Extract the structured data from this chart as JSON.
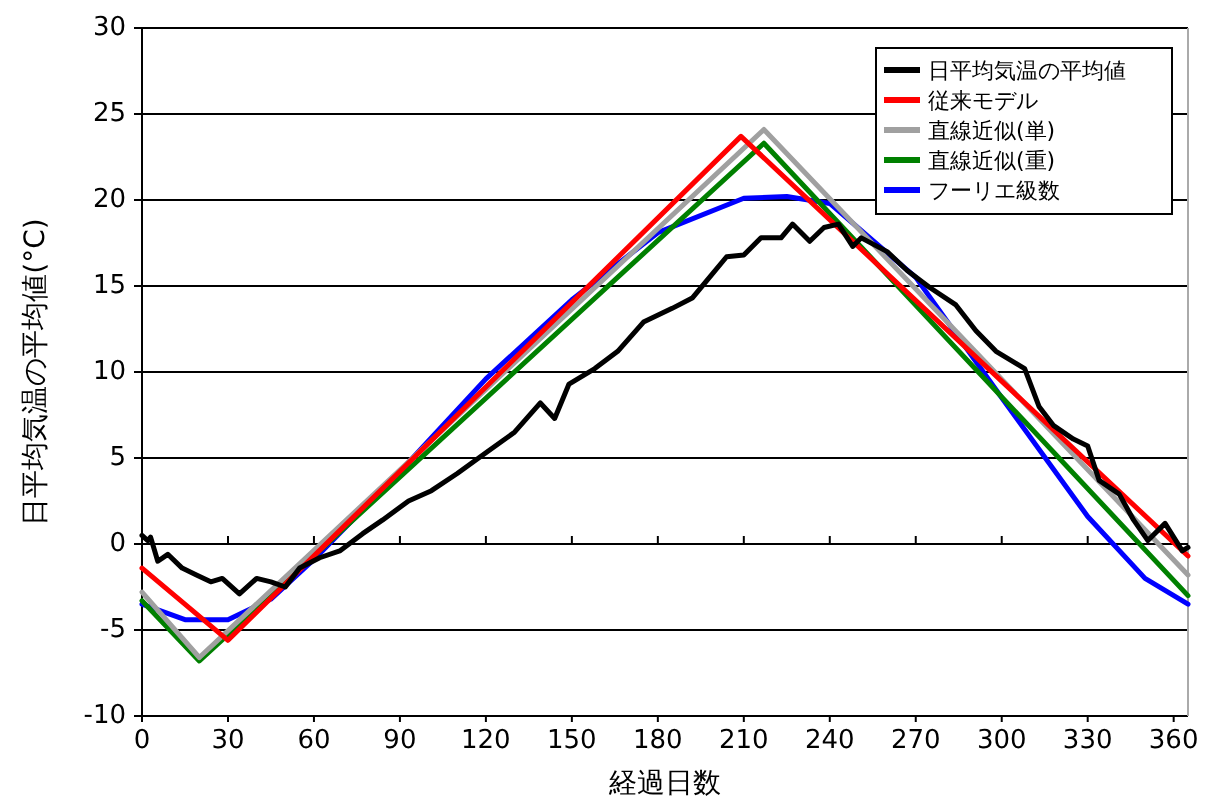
{
  "chart_data": {
    "type": "line",
    "xlabel": "経過日数",
    "ylabel": "日平均気温の平均値(°C)",
    "xlim": [
      0,
      365
    ],
    "ylim": [
      -10,
      30
    ],
    "xticks": [
      0,
      30,
      60,
      90,
      120,
      150,
      180,
      210,
      240,
      270,
      300,
      330,
      360
    ],
    "yticks": [
      -10,
      -5,
      0,
      5,
      10,
      15,
      20,
      25,
      30
    ],
    "grid": "y",
    "legend": "top right",
    "series": [
      {
        "name": "日平均気温の平均値",
        "color": "#000000",
        "x": [
          0,
          2,
          3,
          5.5,
          9,
          14,
          19,
          24,
          28,
          34,
          40,
          45,
          50,
          55,
          62,
          69,
          77,
          84,
          93,
          101,
          110,
          120,
          130,
          139,
          144,
          149,
          158,
          166,
          175,
          185,
          192,
          197,
          204,
          210,
          216,
          223,
          227,
          233,
          238,
          243,
          248,
          251,
          260,
          267,
          275,
          284,
          291,
          298,
          308,
          313,
          318,
          325,
          330,
          334,
          341,
          346,
          351,
          357,
          363,
          365
        ],
        "values": [
          0.5,
          0.2,
          0.4,
          -1,
          -0.6,
          -1.4,
          -1.8,
          -2.2,
          -2,
          -2.9,
          -2,
          -2.2,
          -2.5,
          -1.4,
          -0.8,
          -0.4,
          0.6,
          1.4,
          2.5,
          3.1,
          4.1,
          5.3,
          6.5,
          8.2,
          7.3,
          9.3,
          10.2,
          11.2,
          12.9,
          13.7,
          14.3,
          15.3,
          16.7,
          16.8,
          17.8,
          17.8,
          18.6,
          17.6,
          18.4,
          18.6,
          17.3,
          17.8,
          17,
          15.9,
          14.9,
          13.9,
          12.4,
          11.2,
          10.2,
          8,
          6.9,
          6.1,
          5.7,
          3.7,
          2.9,
          1.4,
          0.2,
          1.2,
          -0.4,
          -0.2
        ]
      },
      {
        "name": "従来モデル",
        "color": "#ff0000",
        "x": [
          0,
          30,
          209,
          365
        ],
        "values": [
          -1.4,
          -5.6,
          23.7,
          -0.7
        ]
      },
      {
        "name": "直線近似(単)",
        "color": "#a0a0a0",
        "x": [
          0,
          20,
          217,
          365
        ],
        "values": [
          -2.8,
          -6.6,
          24.1,
          -1.8
        ]
      },
      {
        "name": "直線近似(重)",
        "color": "#008000",
        "x": [
          0,
          20,
          217,
          365
        ],
        "values": [
          -3.3,
          -6.8,
          23.3,
          -3.0
        ]
      },
      {
        "name": "フーリエ級数",
        "color": "#0000ff",
        "x": [
          0,
          15,
          30,
          45,
          60,
          90,
          120,
          150,
          180,
          210,
          225,
          240,
          270,
          300,
          330,
          350,
          365
        ],
        "values": [
          -3.5,
          -4.4,
          -4.4,
          -3.2,
          -0.9,
          4.2,
          9.6,
          14.2,
          18.1,
          20.1,
          20.2,
          19.8,
          15.5,
          8.5,
          1.6,
          -2,
          -3.5
        ]
      }
    ]
  }
}
